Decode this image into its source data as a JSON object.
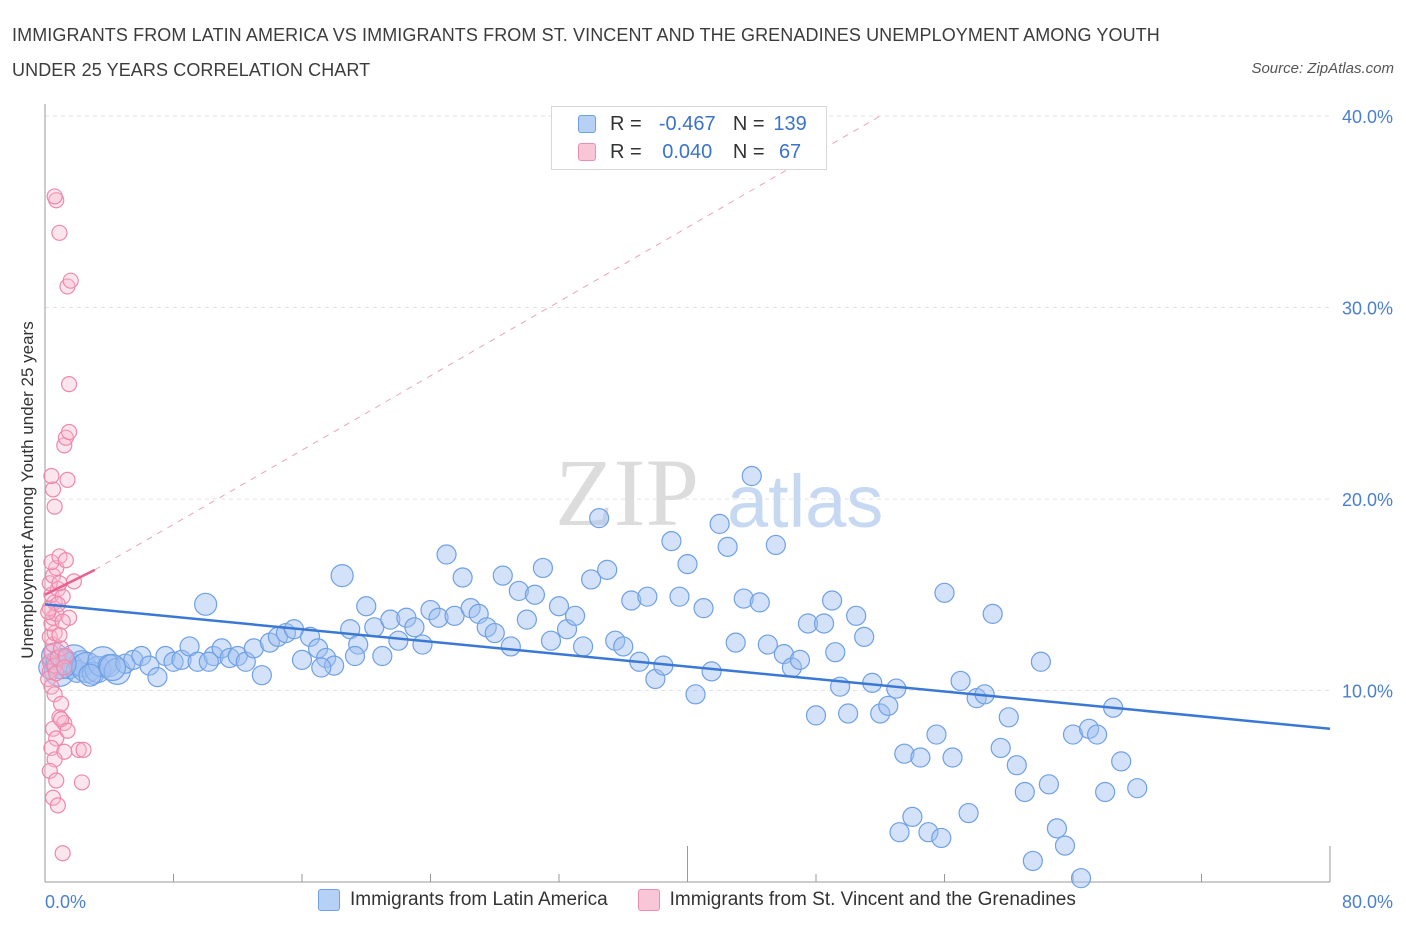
{
  "title": "IMMIGRANTS FROM LATIN AMERICA VS IMMIGRANTS FROM ST. VINCENT AND THE GRENADINES UNEMPLOYMENT AMONG YOUTH UNDER 25 YEARS CORRELATION CHART",
  "source": "Source: ZipAtlas.com",
  "watermark": {
    "zip": "ZIP",
    "atlas": "atlas"
  },
  "legend": {
    "row1": {
      "r_label": "R =",
      "r_value": "-0.467",
      "n_label": "N =",
      "n_value": "139"
    },
    "row2": {
      "r_label": "R =",
      "r_value": "0.040",
      "n_label": "N =",
      "n_value": "67"
    }
  },
  "chart_data": {
    "type": "scatter",
    "ylabel": "Unemployment Among Youth under 25 years",
    "xlabel": "",
    "xlim": [
      0,
      80
    ],
    "ylim": [
      0,
      40
    ],
    "x_tick_labels": [
      "0.0%",
      "80.0%"
    ],
    "y_ticks": [
      10,
      20,
      30,
      40
    ],
    "y_tick_labels": [
      "10.0%",
      "20.0%",
      "30.0%",
      "40.0%"
    ],
    "grid": true,
    "colors": {
      "blue": "#6fa0e6",
      "blue_line": "#3a78d6",
      "pink": "#f08cb0",
      "pink_line": "#e8608e"
    },
    "series": [
      {
        "name": "Immigrants from Latin America",
        "color": "#6fa0e6",
        "trendline": {
          "x": [
            0,
            80
          ],
          "y": [
            14.5,
            8.0
          ]
        },
        "points": [
          [
            0.3,
            11.2
          ],
          [
            0.6,
            11.8
          ],
          [
            0.9,
            11.0
          ],
          [
            1.2,
            11.5
          ],
          [
            1.5,
            11.3
          ],
          [
            1.8,
            11.6
          ],
          [
            2.0,
            11.0
          ],
          [
            2.3,
            11.4
          ],
          [
            2.6,
            11.2
          ],
          [
            3.0,
            10.9
          ],
          [
            3.3,
            11.1
          ],
          [
            3.6,
            11.5
          ],
          [
            4.0,
            11.3
          ],
          [
            4.5,
            11.0
          ],
          [
            5.0,
            11.4
          ],
          [
            5.5,
            11.6
          ],
          [
            6.0,
            11.8
          ],
          [
            6.5,
            11.3
          ],
          [
            7.0,
            10.7
          ],
          [
            7.5,
            11.8
          ],
          [
            8.0,
            11.5
          ],
          [
            8.5,
            11.6
          ],
          [
            9.0,
            12.3
          ],
          [
            9.5,
            11.5
          ],
          [
            10.0,
            14.5
          ],
          [
            10.5,
            11.8
          ],
          [
            11.0,
            12.2
          ],
          [
            11.5,
            11.7
          ],
          [
            12.0,
            11.8
          ],
          [
            12.5,
            11.5
          ],
          [
            13.0,
            12.2
          ],
          [
            13.5,
            10.8
          ],
          [
            14.0,
            12.5
          ],
          [
            14.5,
            12.8
          ],
          [
            15.0,
            13.0
          ],
          [
            15.5,
            13.2
          ],
          [
            16.0,
            11.6
          ],
          [
            16.5,
            12.8
          ],
          [
            17.0,
            12.2
          ],
          [
            17.5,
            11.7
          ],
          [
            18.0,
            11.3
          ],
          [
            18.5,
            16.0
          ],
          [
            19.0,
            13.2
          ],
          [
            19.5,
            12.4
          ],
          [
            20.0,
            14.4
          ],
          [
            20.5,
            13.3
          ],
          [
            21.0,
            11.8
          ],
          [
            21.5,
            13.7
          ],
          [
            22.0,
            12.6
          ],
          [
            22.5,
            13.8
          ],
          [
            23.0,
            13.3
          ],
          [
            23.5,
            12.4
          ],
          [
            24.0,
            14.2
          ],
          [
            24.5,
            13.8
          ],
          [
            25.0,
            17.1
          ],
          [
            25.5,
            13.9
          ],
          [
            26.0,
            15.9
          ],
          [
            26.5,
            14.3
          ],
          [
            27.0,
            14.0
          ],
          [
            27.5,
            13.3
          ],
          [
            28.0,
            13.0
          ],
          [
            28.5,
            16.0
          ],
          [
            29.0,
            12.3
          ],
          [
            29.5,
            15.2
          ],
          [
            30.0,
            13.7
          ],
          [
            30.5,
            15.0
          ],
          [
            31.0,
            16.4
          ],
          [
            31.5,
            12.6
          ],
          [
            32.0,
            14.4
          ],
          [
            32.5,
            13.2
          ],
          [
            33.0,
            13.9
          ],
          [
            33.5,
            12.3
          ],
          [
            34.0,
            15.8
          ],
          [
            34.5,
            19.0
          ],
          [
            35.0,
            16.3
          ],
          [
            35.5,
            12.6
          ],
          [
            36.0,
            12.3
          ],
          [
            36.5,
            14.7
          ],
          [
            37.0,
            11.5
          ],
          [
            37.5,
            14.9
          ],
          [
            38.0,
            10.6
          ],
          [
            38.5,
            11.3
          ],
          [
            39.0,
            17.8
          ],
          [
            39.5,
            14.9
          ],
          [
            40.0,
            16.6
          ],
          [
            40.5,
            9.8
          ],
          [
            41.0,
            14.3
          ],
          [
            41.5,
            11.0
          ],
          [
            42.0,
            18.7
          ],
          [
            42.5,
            17.5
          ],
          [
            43.0,
            12.5
          ],
          [
            43.5,
            14.8
          ],
          [
            44.0,
            21.2
          ],
          [
            44.5,
            14.6
          ],
          [
            45.0,
            12.4
          ],
          [
            45.5,
            17.6
          ],
          [
            46.0,
            11.9
          ],
          [
            46.5,
            11.2
          ],
          [
            47.0,
            11.6
          ],
          [
            47.5,
            13.5
          ],
          [
            48.0,
            8.7
          ],
          [
            48.5,
            13.5
          ],
          [
            49.0,
            14.7
          ],
          [
            49.5,
            10.2
          ],
          [
            50.0,
            8.8
          ],
          [
            50.5,
            13.9
          ],
          [
            51.0,
            12.8
          ],
          [
            51.5,
            10.4
          ],
          [
            52.0,
            8.8
          ],
          [
            52.5,
            9.2
          ],
          [
            53.0,
            10.1
          ],
          [
            53.5,
            6.7
          ],
          [
            54.0,
            3.4
          ],
          [
            54.5,
            6.5
          ],
          [
            55.0,
            2.6
          ],
          [
            55.5,
            7.7
          ],
          [
            56.0,
            15.1
          ],
          [
            56.5,
            6.5
          ],
          [
            57.0,
            10.5
          ],
          [
            57.5,
            3.6
          ],
          [
            58.0,
            9.6
          ],
          [
            58.5,
            9.8
          ],
          [
            59.0,
            14.0
          ],
          [
            59.5,
            7.0
          ],
          [
            60.0,
            8.6
          ],
          [
            60.5,
            6.1
          ],
          [
            61.0,
            4.7
          ],
          [
            61.5,
            1.1
          ],
          [
            62.0,
            11.5
          ],
          [
            62.5,
            5.1
          ],
          [
            63.0,
            2.8
          ],
          [
            63.5,
            1.9
          ],
          [
            64.0,
            7.7
          ],
          [
            64.5,
            0.2
          ],
          [
            65.0,
            8.0
          ],
          [
            65.5,
            7.7
          ],
          [
            66.0,
            4.7
          ],
          [
            66.5,
            9.1
          ],
          [
            67.0,
            6.3
          ],
          [
            68.0,
            4.9
          ],
          [
            1.0,
            11.4
          ],
          [
            2.8,
            10.8
          ],
          [
            4.2,
            11.2
          ],
          [
            19.3,
            11.8
          ],
          [
            17.2,
            11.2
          ],
          [
            55.8,
            2.3
          ],
          [
            53.2,
            2.6
          ],
          [
            49.2,
            12.0
          ],
          [
            10.2,
            11.5
          ]
        ]
      },
      {
        "name": "Immigrants from St. Vincent and the Grenadines",
        "color": "#f08cb0",
        "trendline": {
          "x": [
            0,
            3.1
          ],
          "y": [
            15.0,
            16.3
          ]
        },
        "points": [
          [
            0.3,
            11.5
          ],
          [
            0.4,
            12.0
          ],
          [
            0.5,
            12.4
          ],
          [
            0.3,
            12.8
          ],
          [
            0.6,
            13.0
          ],
          [
            0.4,
            13.5
          ],
          [
            0.5,
            13.8
          ],
          [
            0.7,
            14.0
          ],
          [
            0.3,
            14.3
          ],
          [
            0.6,
            14.6
          ],
          [
            0.4,
            15.0
          ],
          [
            0.8,
            15.3
          ],
          [
            0.3,
            15.6
          ],
          [
            0.5,
            16.0
          ],
          [
            0.7,
            16.4
          ],
          [
            0.4,
            16.7
          ],
          [
            0.9,
            17.0
          ],
          [
            0.3,
            11.0
          ],
          [
            0.6,
            11.3
          ],
          [
            0.8,
            11.7
          ],
          [
            1.0,
            12.2
          ],
          [
            0.2,
            10.6
          ],
          [
            0.4,
            10.2
          ],
          [
            0.6,
            9.8
          ],
          [
            1.0,
            9.3
          ],
          [
            0.9,
            8.6
          ],
          [
            0.5,
            8.0
          ],
          [
            0.7,
            7.5
          ],
          [
            0.4,
            7.0
          ],
          [
            1.2,
            6.8
          ],
          [
            0.6,
            6.4
          ],
          [
            0.3,
            5.8
          ],
          [
            0.7,
            5.3
          ],
          [
            0.5,
            4.4
          ],
          [
            0.8,
            4.0
          ],
          [
            1.1,
            1.5
          ],
          [
            0.6,
            19.6
          ],
          [
            0.5,
            20.5
          ],
          [
            0.4,
            21.2
          ],
          [
            1.4,
            21.0
          ],
          [
            1.2,
            22.8
          ],
          [
            1.3,
            23.2
          ],
          [
            1.5,
            23.5
          ],
          [
            1.5,
            26.0
          ],
          [
            1.4,
            31.1
          ],
          [
            1.6,
            31.4
          ],
          [
            0.9,
            33.9
          ],
          [
            0.7,
            35.6
          ],
          [
            0.6,
            35.8
          ],
          [
            2.1,
            6.9
          ],
          [
            2.3,
            5.2
          ],
          [
            2.4,
            6.9
          ],
          [
            1.5,
            13.8
          ],
          [
            1.8,
            15.7
          ],
          [
            1.1,
            14.9
          ],
          [
            1.3,
            16.8
          ],
          [
            1.2,
            8.3
          ],
          [
            1.0,
            8.5
          ],
          [
            1.4,
            7.9
          ],
          [
            0.9,
            12.9
          ],
          [
            1.1,
            13.6
          ],
          [
            0.8,
            14.5
          ],
          [
            0.7,
            10.9
          ],
          [
            1.3,
            11.8
          ],
          [
            0.2,
            14.1
          ],
          [
            0.9,
            15.6
          ],
          [
            1.2,
            11.2
          ]
        ]
      }
    ]
  },
  "bottom_legend": {
    "series1": "Immigrants from Latin America",
    "series2": "Immigrants from St. Vincent and the Grenadines"
  }
}
